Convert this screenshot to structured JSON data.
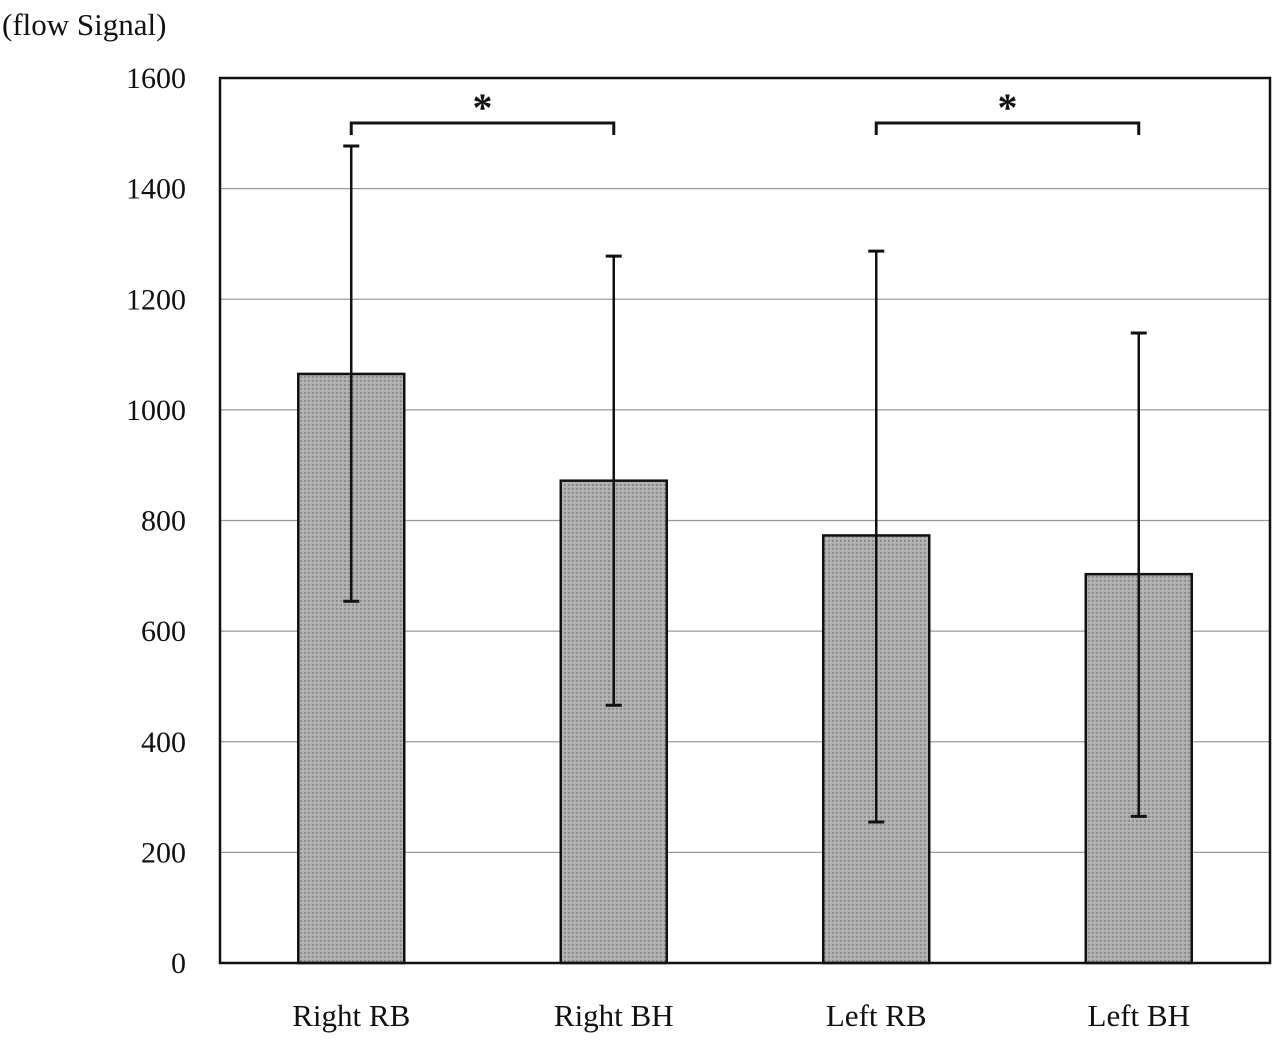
{
  "chart_data": {
    "type": "bar",
    "title": "",
    "ylabel": "(flow Signal)",
    "xlabel": "",
    "categories": [
      "Right RB",
      "Right BH",
      "Left RB",
      "Left BH"
    ],
    "values": [
      1065,
      872,
      773,
      703
    ],
    "error_upper": [
      1477,
      1278,
      1287,
      1139
    ],
    "error_lower": [
      654,
      466,
      255,
      265
    ],
    "ylim": [
      0,
      1600
    ],
    "yticks": [
      0,
      200,
      400,
      600,
      800,
      1000,
      1200,
      1400,
      1600
    ],
    "ytick_labels": [
      "0",
      "200",
      "400",
      "600",
      "800",
      "1000",
      "1200",
      "1400",
      "1600"
    ],
    "grid": true,
    "significance": [
      {
        "from": "Right RB",
        "to": "Right BH",
        "label": "*"
      },
      {
        "from": "Left RB",
        "to": "Left BH",
        "label": "*"
      }
    ],
    "colors": {
      "bar_fill": "#a9a9a9",
      "bar_stroke": "#111111",
      "grid": "#999999",
      "axis": "#111111"
    }
  }
}
